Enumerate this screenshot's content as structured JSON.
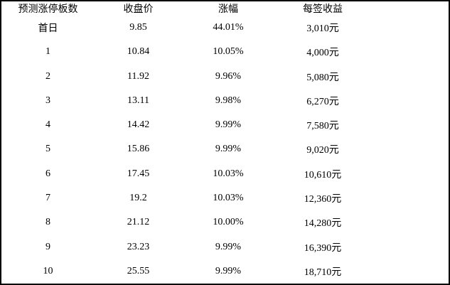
{
  "chart_data": {
    "type": "table",
    "columns": [
      "预测涨停板数",
      "收盘价",
      "涨幅",
      "每签收益"
    ],
    "rows": [
      [
        "首日",
        "9.85",
        "44.01%",
        "3,010元"
      ],
      [
        "1",
        "10.84",
        "10.05%",
        "4,000元"
      ],
      [
        "2",
        "11.92",
        "9.96%",
        "5,080元"
      ],
      [
        "3",
        "13.11",
        "9.98%",
        "6,270元"
      ],
      [
        "4",
        "14.42",
        "9.99%",
        "7,580元"
      ],
      [
        "5",
        "15.86",
        "9.99%",
        "9,020元"
      ],
      [
        "6",
        "17.45",
        "10.03%",
        "10,610元"
      ],
      [
        "7",
        "19.2",
        "10.03%",
        "12,360元"
      ],
      [
        "8",
        "21.12",
        "10.00%",
        "14,280元"
      ],
      [
        "9",
        "23.23",
        "9.99%",
        "16,390元"
      ],
      [
        "10",
        "25.55",
        "9.99%",
        "18,710元"
      ]
    ],
    "layout": {
      "grid": "outer-border-only",
      "text_align": "center"
    }
  },
  "colors": {
    "border": "#000000",
    "text": "#000000",
    "background": "#ffffff"
  }
}
